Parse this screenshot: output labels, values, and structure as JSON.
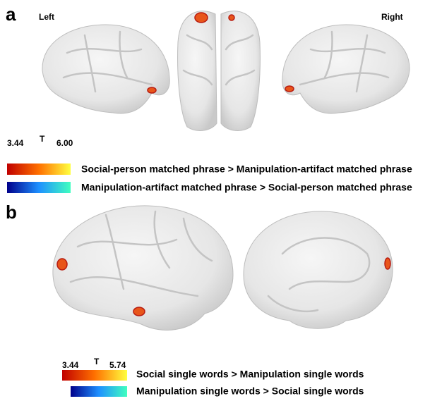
{
  "panel_a": {
    "label": "a",
    "left_label": "Left",
    "right_label": "Right",
    "colorbar": {
      "min": "3.44",
      "stat": "T",
      "max": "6.00"
    },
    "legend": [
      "Social-person matched phrase > Manipulation-artifact matched phrase",
      "Manipulation-artifact matched phrase > Social-person matched phrase"
    ]
  },
  "panel_b": {
    "label": "b",
    "colorbar": {
      "min": "3.44",
      "stat": "T",
      "max": "5.74"
    },
    "legend": [
      "Social single words > Manipulation single words",
      "Manipulation single words > Social single words"
    ]
  }
}
